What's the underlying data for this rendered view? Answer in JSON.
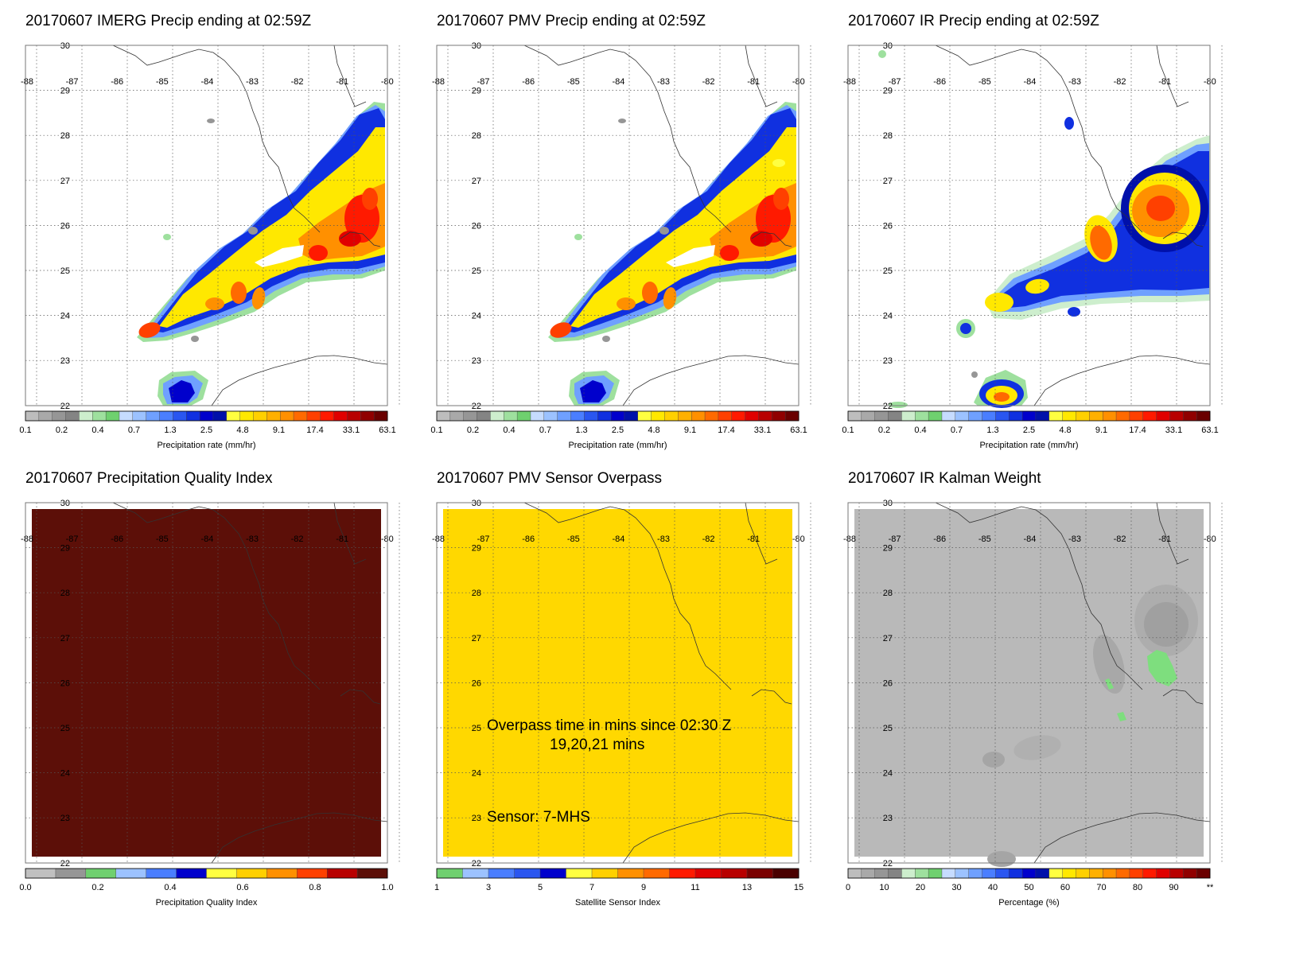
{
  "colors": {
    "gray": [
      "#bdbdbd",
      "#a9a9a9",
      "#969696",
      "#848484"
    ],
    "green": [
      "#cdeecd",
      "#9ee09e",
      "#6fd06f"
    ],
    "lightblue": [
      "#c6dcff",
      "#9cc2ff",
      "#6fa0ff",
      "#4a7eff"
    ],
    "blue": [
      "#2a56f0",
      "#1030e0",
      "#0000cc",
      "#0010aa"
    ],
    "yellow": [
      "#ffff40",
      "#ffe800",
      "#ffd000"
    ],
    "orange": [
      "#ffb000",
      "#ff9000",
      "#ff6a00",
      "#ff4000"
    ],
    "red": [
      "#ff1a00",
      "#e00000",
      "#b80000",
      "#900000",
      "#6a0000"
    ]
  },
  "panels": [
    {
      "id": "imerg",
      "title": "20170607 IMERG Precip ending at 02:59Z",
      "map_type": "precip",
      "colorbar_ticks": [
        "0.1",
        "0.2",
        "0.4",
        "0.7",
        "1.3",
        "2.5",
        "4.8",
        "9.1",
        "17.4",
        "33.1",
        "63.1"
      ],
      "colorbar_label": "Precipitation rate (mm/hr)"
    },
    {
      "id": "pmv",
      "title": "20170607 PMV Precip ending at 02:59Z",
      "map_type": "precip",
      "colorbar_ticks": [
        "0.1",
        "0.2",
        "0.4",
        "0.7",
        "1.3",
        "2.5",
        "4.8",
        "9.1",
        "17.4",
        "33.1",
        "63.1"
      ],
      "colorbar_label": "Precipitation rate (mm/hr)"
    },
    {
      "id": "ir",
      "title": "20170607 IR Precip ending at 02:59Z",
      "map_type": "ir",
      "colorbar_ticks": [
        "0.1",
        "0.2",
        "0.4",
        "0.7",
        "1.3",
        "2.5",
        "4.8",
        "9.1",
        "17.4",
        "33.1",
        "63.1"
      ],
      "colorbar_label": "Precipitation rate (mm/hr)"
    },
    {
      "id": "quality",
      "title": "20170607 Precipitation Quality Index",
      "map_type": "fill",
      "fill_color": "#5c0f08",
      "colorbar_ticks": [
        "0.0",
        "0.2",
        "0.4",
        "0.6",
        "0.8",
        "1.0"
      ],
      "colorbar_label": "Precipitation Quality Index"
    },
    {
      "id": "sensor",
      "title": "20170607 PMV Sensor Overpass",
      "map_type": "fill",
      "fill_color": "#ffd800",
      "overpass_line1": "Overpass time in mins since 02:30 Z",
      "overpass_line2": "19,20,21 mins",
      "sensor_text": "Sensor:   7-MHS",
      "colorbar_ticks": [
        "1",
        "3",
        "5",
        "7",
        "9",
        "11",
        "13",
        "15"
      ],
      "colorbar_label": "Satellite Sensor Index"
    },
    {
      "id": "kalman",
      "title": "20170607 IR Kalman Weight",
      "map_type": "kalman",
      "fill_color": "#b9b9b9",
      "colorbar_ticks": [
        "0",
        "10",
        "20",
        "30",
        "40",
        "50",
        "60",
        "70",
        "80",
        "90",
        "**"
      ],
      "colorbar_label": "Percentage (%)"
    }
  ],
  "lat_labels": [
    "30",
    "29",
    "28",
    "27",
    "26",
    "25",
    "24",
    "23",
    "22"
  ],
  "lon_labels": [
    "-88",
    "-87",
    "-86",
    "-85",
    "-84",
    "-83",
    "-82",
    "-81",
    "-80"
  ]
}
